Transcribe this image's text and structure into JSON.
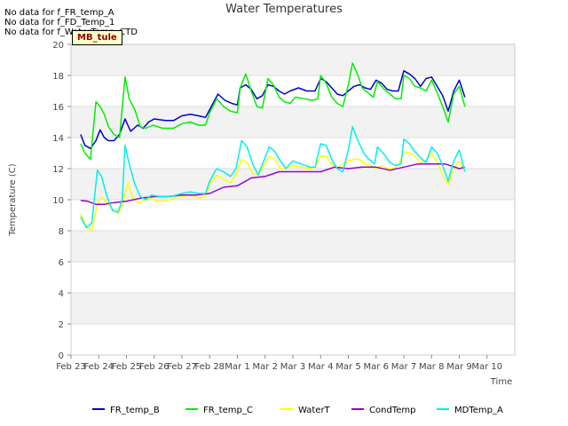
{
  "notes": [
    "No data for f_FR_temp_A",
    "No data for f_FD_Temp_1",
    "No data for f_WaterTemp_CTD"
  ],
  "site_tag": "MB_tule",
  "chart_data": {
    "type": "line",
    "title": "Water Temperatures",
    "xlabel": "Time",
    "ylabel": "Temperature (C)",
    "ylim": [
      0,
      20
    ],
    "yticks": [
      0,
      2,
      4,
      6,
      8,
      10,
      12,
      14,
      16,
      18,
      20
    ],
    "xlim": [
      0,
      16
    ],
    "xticks": [
      {
        "v": 0,
        "label": "Feb 23"
      },
      {
        "v": 1,
        "label": "Feb 24"
      },
      {
        "v": 2,
        "label": "Feb 25"
      },
      {
        "v": 3,
        "label": "Feb 26"
      },
      {
        "v": 4,
        "label": "Feb 27"
      },
      {
        "v": 5,
        "label": "Feb 28"
      },
      {
        "v": 6,
        "label": "Mar 1"
      },
      {
        "v": 7,
        "label": "Mar 2"
      },
      {
        "v": 8,
        "label": "Mar 3"
      },
      {
        "v": 9,
        "label": "Mar 4"
      },
      {
        "v": 10,
        "label": "Mar 5"
      },
      {
        "v": 11,
        "label": "Mar 6"
      },
      {
        "v": 12,
        "label": "Mar 7"
      },
      {
        "v": 13,
        "label": "Mar 8"
      },
      {
        "v": 14,
        "label": "Mar 9"
      },
      {
        "v": 15,
        "label": "Mar 10"
      }
    ],
    "grid": true,
    "legend": "bottom",
    "series": [
      {
        "name": "FR_temp_B",
        "color": "#0000cc",
        "points": [
          [
            0.35,
            14.2
          ],
          [
            0.5,
            13.5
          ],
          [
            0.7,
            13.3
          ],
          [
            0.9,
            13.8
          ],
          [
            1.05,
            14.5
          ],
          [
            1.2,
            14.0
          ],
          [
            1.35,
            13.8
          ],
          [
            1.55,
            13.8
          ],
          [
            1.75,
            14.2
          ],
          [
            1.95,
            15.2
          ],
          [
            2.15,
            14.4
          ],
          [
            2.4,
            14.8
          ],
          [
            2.6,
            14.6
          ],
          [
            2.8,
            15.0
          ],
          [
            3.0,
            15.2
          ],
          [
            3.4,
            15.1
          ],
          [
            3.7,
            15.1
          ],
          [
            4.0,
            15.4
          ],
          [
            4.3,
            15.5
          ],
          [
            4.6,
            15.4
          ],
          [
            4.85,
            15.3
          ],
          [
            5.0,
            15.8
          ],
          [
            5.3,
            16.8
          ],
          [
            5.55,
            16.4
          ],
          [
            5.8,
            16.2
          ],
          [
            6.0,
            16.1
          ],
          [
            6.1,
            17.2
          ],
          [
            6.3,
            17.4
          ],
          [
            6.5,
            17.1
          ],
          [
            6.7,
            16.5
          ],
          [
            6.9,
            16.7
          ],
          [
            7.1,
            17.4
          ],
          [
            7.3,
            17.3
          ],
          [
            7.5,
            17.0
          ],
          [
            7.7,
            16.8
          ],
          [
            7.9,
            17.0
          ],
          [
            8.2,
            17.2
          ],
          [
            8.5,
            17.0
          ],
          [
            8.8,
            17.0
          ],
          [
            9.0,
            17.8
          ],
          [
            9.2,
            17.6
          ],
          [
            9.4,
            17.2
          ],
          [
            9.6,
            16.8
          ],
          [
            9.8,
            16.7
          ],
          [
            10.0,
            17.0
          ],
          [
            10.2,
            17.3
          ],
          [
            10.4,
            17.4
          ],
          [
            10.6,
            17.2
          ],
          [
            10.8,
            17.1
          ],
          [
            11.0,
            17.7
          ],
          [
            11.2,
            17.5
          ],
          [
            11.4,
            17.1
          ],
          [
            11.6,
            17.0
          ],
          [
            11.8,
            17.0
          ],
          [
            12.0,
            18.3
          ],
          [
            12.2,
            18.1
          ],
          [
            12.4,
            17.8
          ],
          [
            12.6,
            17.3
          ],
          [
            12.8,
            17.8
          ],
          [
            13.0,
            17.9
          ],
          [
            13.2,
            17.3
          ],
          [
            13.4,
            16.7
          ],
          [
            13.6,
            15.7
          ],
          [
            13.8,
            17.0
          ],
          [
            14.0,
            17.7
          ],
          [
            14.2,
            16.6
          ]
        ]
      },
      {
        "name": "FR_temp_C",
        "color": "#00ee00",
        "points": [
          [
            0.35,
            13.6
          ],
          [
            0.5,
            13.0
          ],
          [
            0.7,
            12.6
          ],
          [
            0.9,
            16.3
          ],
          [
            1.05,
            16.0
          ],
          [
            1.2,
            15.5
          ],
          [
            1.35,
            14.7
          ],
          [
            1.55,
            14.2
          ],
          [
            1.75,
            14.0
          ],
          [
            1.95,
            17.9
          ],
          [
            2.1,
            16.5
          ],
          [
            2.3,
            15.8
          ],
          [
            2.5,
            14.7
          ],
          [
            2.7,
            14.6
          ],
          [
            2.95,
            14.8
          ],
          [
            3.3,
            14.6
          ],
          [
            3.7,
            14.6
          ],
          [
            4.0,
            14.9
          ],
          [
            4.3,
            15.0
          ],
          [
            4.6,
            14.8
          ],
          [
            4.85,
            14.8
          ],
          [
            5.0,
            15.6
          ],
          [
            5.25,
            16.5
          ],
          [
            5.5,
            16.0
          ],
          [
            5.75,
            15.7
          ],
          [
            6.0,
            15.6
          ],
          [
            6.1,
            17.2
          ],
          [
            6.3,
            18.1
          ],
          [
            6.5,
            17.0
          ],
          [
            6.7,
            16.0
          ],
          [
            6.9,
            15.9
          ],
          [
            7.1,
            17.8
          ],
          [
            7.3,
            17.4
          ],
          [
            7.5,
            16.6
          ],
          [
            7.7,
            16.3
          ],
          [
            7.9,
            16.2
          ],
          [
            8.1,
            16.6
          ],
          [
            8.4,
            16.5
          ],
          [
            8.7,
            16.4
          ],
          [
            8.9,
            16.5
          ],
          [
            9.0,
            18.0
          ],
          [
            9.2,
            17.5
          ],
          [
            9.4,
            16.6
          ],
          [
            9.6,
            16.2
          ],
          [
            9.8,
            16.0
          ],
          [
            10.0,
            17.4
          ],
          [
            10.15,
            18.8
          ],
          [
            10.35,
            18.0
          ],
          [
            10.5,
            17.2
          ],
          [
            10.7,
            16.9
          ],
          [
            10.9,
            16.6
          ],
          [
            11.05,
            17.6
          ],
          [
            11.3,
            17.1
          ],
          [
            11.5,
            16.8
          ],
          [
            11.7,
            16.5
          ],
          [
            11.9,
            16.5
          ],
          [
            12.0,
            18.0
          ],
          [
            12.2,
            17.8
          ],
          [
            12.4,
            17.3
          ],
          [
            12.6,
            17.2
          ],
          [
            12.8,
            17.0
          ],
          [
            13.0,
            17.7
          ],
          [
            13.2,
            16.9
          ],
          [
            13.4,
            16.0
          ],
          [
            13.6,
            15.0
          ],
          [
            13.8,
            16.8
          ],
          [
            14.0,
            17.3
          ],
          [
            14.2,
            16.0
          ]
        ]
      },
      {
        "name": "WaterT",
        "color": "#ffff00",
        "points": [
          [
            0.35,
            9.1
          ],
          [
            0.55,
            8.3
          ],
          [
            0.75,
            8.0
          ],
          [
            0.95,
            9.7
          ],
          [
            1.1,
            10.2
          ],
          [
            1.3,
            9.8
          ],
          [
            1.5,
            9.4
          ],
          [
            1.7,
            9.1
          ],
          [
            1.85,
            9.6
          ],
          [
            2.05,
            11.1
          ],
          [
            2.25,
            10.0
          ],
          [
            2.45,
            9.8
          ],
          [
            2.7,
            10.0
          ],
          [
            2.9,
            10.1
          ],
          [
            3.1,
            9.9
          ],
          [
            3.4,
            9.9
          ],
          [
            3.7,
            10.1
          ],
          [
            4.0,
            10.2
          ],
          [
            4.3,
            10.3
          ],
          [
            4.6,
            10.1
          ],
          [
            4.85,
            10.2
          ],
          [
            5.0,
            11.0
          ],
          [
            5.25,
            11.6
          ],
          [
            5.5,
            11.3
          ],
          [
            5.75,
            11.1
          ],
          [
            5.95,
            11.6
          ],
          [
            6.15,
            12.6
          ],
          [
            6.35,
            12.4
          ],
          [
            6.55,
            11.7
          ],
          [
            6.75,
            11.6
          ],
          [
            6.95,
            12.2
          ],
          [
            7.15,
            12.8
          ],
          [
            7.35,
            12.6
          ],
          [
            7.55,
            12.0
          ],
          [
            7.75,
            12.0
          ],
          [
            8.0,
            12.2
          ],
          [
            8.3,
            12.1
          ],
          [
            8.6,
            12.0
          ],
          [
            8.8,
            12.1
          ],
          [
            9.0,
            12.8
          ],
          [
            9.2,
            12.8
          ],
          [
            9.4,
            12.3
          ],
          [
            9.6,
            12.0
          ],
          [
            9.8,
            12.3
          ],
          [
            10.0,
            12.5
          ],
          [
            10.2,
            12.6
          ],
          [
            10.4,
            12.6
          ],
          [
            10.6,
            12.3
          ],
          [
            10.8,
            12.2
          ],
          [
            11.0,
            12.0
          ],
          [
            11.2,
            12.2
          ],
          [
            11.4,
            12.0
          ],
          [
            11.6,
            12.0
          ],
          [
            11.8,
            12.2
          ],
          [
            12.0,
            13.1
          ],
          [
            12.2,
            13.0
          ],
          [
            12.4,
            12.8
          ],
          [
            12.6,
            12.4
          ],
          [
            12.8,
            12.5
          ],
          [
            13.0,
            13.0
          ],
          [
            13.2,
            12.4
          ],
          [
            13.4,
            11.6
          ],
          [
            13.6,
            11.0
          ],
          [
            13.8,
            12.0
          ],
          [
            14.0,
            12.5
          ],
          [
            14.2,
            11.8
          ]
        ]
      },
      {
        "name": "CondTemp",
        "color": "#9900cc",
        "points": [
          [
            0.35,
            9.95
          ],
          [
            0.6,
            9.9
          ],
          [
            0.9,
            9.7
          ],
          [
            1.2,
            9.7
          ],
          [
            1.5,
            9.8
          ],
          [
            2.0,
            9.9
          ],
          [
            2.5,
            10.1
          ],
          [
            3.0,
            10.2
          ],
          [
            3.5,
            10.2
          ],
          [
            4.0,
            10.3
          ],
          [
            4.5,
            10.3
          ],
          [
            5.0,
            10.4
          ],
          [
            5.5,
            10.8
          ],
          [
            6.0,
            10.9
          ],
          [
            6.5,
            11.4
          ],
          [
            7.0,
            11.5
          ],
          [
            7.5,
            11.8
          ],
          [
            8.0,
            11.8
          ],
          [
            8.5,
            11.8
          ],
          [
            9.0,
            11.8
          ],
          [
            9.5,
            12.1
          ],
          [
            10.0,
            12.0
          ],
          [
            10.5,
            12.1
          ],
          [
            11.0,
            12.1
          ],
          [
            11.5,
            11.9
          ],
          [
            12.0,
            12.1
          ],
          [
            12.5,
            12.3
          ],
          [
            13.0,
            12.3
          ],
          [
            13.5,
            12.3
          ],
          [
            14.0,
            12.0
          ],
          [
            14.2,
            12.1
          ]
        ]
      },
      {
        "name": "MDTemp_A",
        "color": "#00eeee",
        "points": [
          [
            0.35,
            8.9
          ],
          [
            0.55,
            8.2
          ],
          [
            0.75,
            8.5
          ],
          [
            0.95,
            11.9
          ],
          [
            1.1,
            11.5
          ],
          [
            1.3,
            10.2
          ],
          [
            1.5,
            9.3
          ],
          [
            1.7,
            9.2
          ],
          [
            1.85,
            10.0
          ],
          [
            1.95,
            13.5
          ],
          [
            2.1,
            12.3
          ],
          [
            2.3,
            11.0
          ],
          [
            2.5,
            10.2
          ],
          [
            2.7,
            10.0
          ],
          [
            2.9,
            10.3
          ],
          [
            3.2,
            10.2
          ],
          [
            3.6,
            10.2
          ],
          [
            4.0,
            10.4
          ],
          [
            4.3,
            10.5
          ],
          [
            4.6,
            10.4
          ],
          [
            4.85,
            10.4
          ],
          [
            5.0,
            11.2
          ],
          [
            5.25,
            12.0
          ],
          [
            5.5,
            11.8
          ],
          [
            5.75,
            11.5
          ],
          [
            5.95,
            12.0
          ],
          [
            6.15,
            13.8
          ],
          [
            6.35,
            13.4
          ],
          [
            6.55,
            12.3
          ],
          [
            6.75,
            11.6
          ],
          [
            6.95,
            12.5
          ],
          [
            7.15,
            13.4
          ],
          [
            7.35,
            13.1
          ],
          [
            7.55,
            12.5
          ],
          [
            7.75,
            12.0
          ],
          [
            8.0,
            12.5
          ],
          [
            8.3,
            12.3
          ],
          [
            8.6,
            12.1
          ],
          [
            8.8,
            12.1
          ],
          [
            9.0,
            13.6
          ],
          [
            9.2,
            13.5
          ],
          [
            9.4,
            12.6
          ],
          [
            9.6,
            12.0
          ],
          [
            9.8,
            11.8
          ],
          [
            10.0,
            13.2
          ],
          [
            10.15,
            14.7
          ],
          [
            10.35,
            13.8
          ],
          [
            10.55,
            13.0
          ],
          [
            10.75,
            12.6
          ],
          [
            10.95,
            12.3
          ],
          [
            11.05,
            13.4
          ],
          [
            11.3,
            12.9
          ],
          [
            11.5,
            12.4
          ],
          [
            11.7,
            12.2
          ],
          [
            11.9,
            12.3
          ],
          [
            12.0,
            13.9
          ],
          [
            12.2,
            13.6
          ],
          [
            12.4,
            13.1
          ],
          [
            12.6,
            12.7
          ],
          [
            12.8,
            12.4
          ],
          [
            13.0,
            13.4
          ],
          [
            13.2,
            13.0
          ],
          [
            13.4,
            12.2
          ],
          [
            13.6,
            11.2
          ],
          [
            13.8,
            12.5
          ],
          [
            14.0,
            13.2
          ],
          [
            14.2,
            11.8
          ]
        ]
      }
    ]
  }
}
